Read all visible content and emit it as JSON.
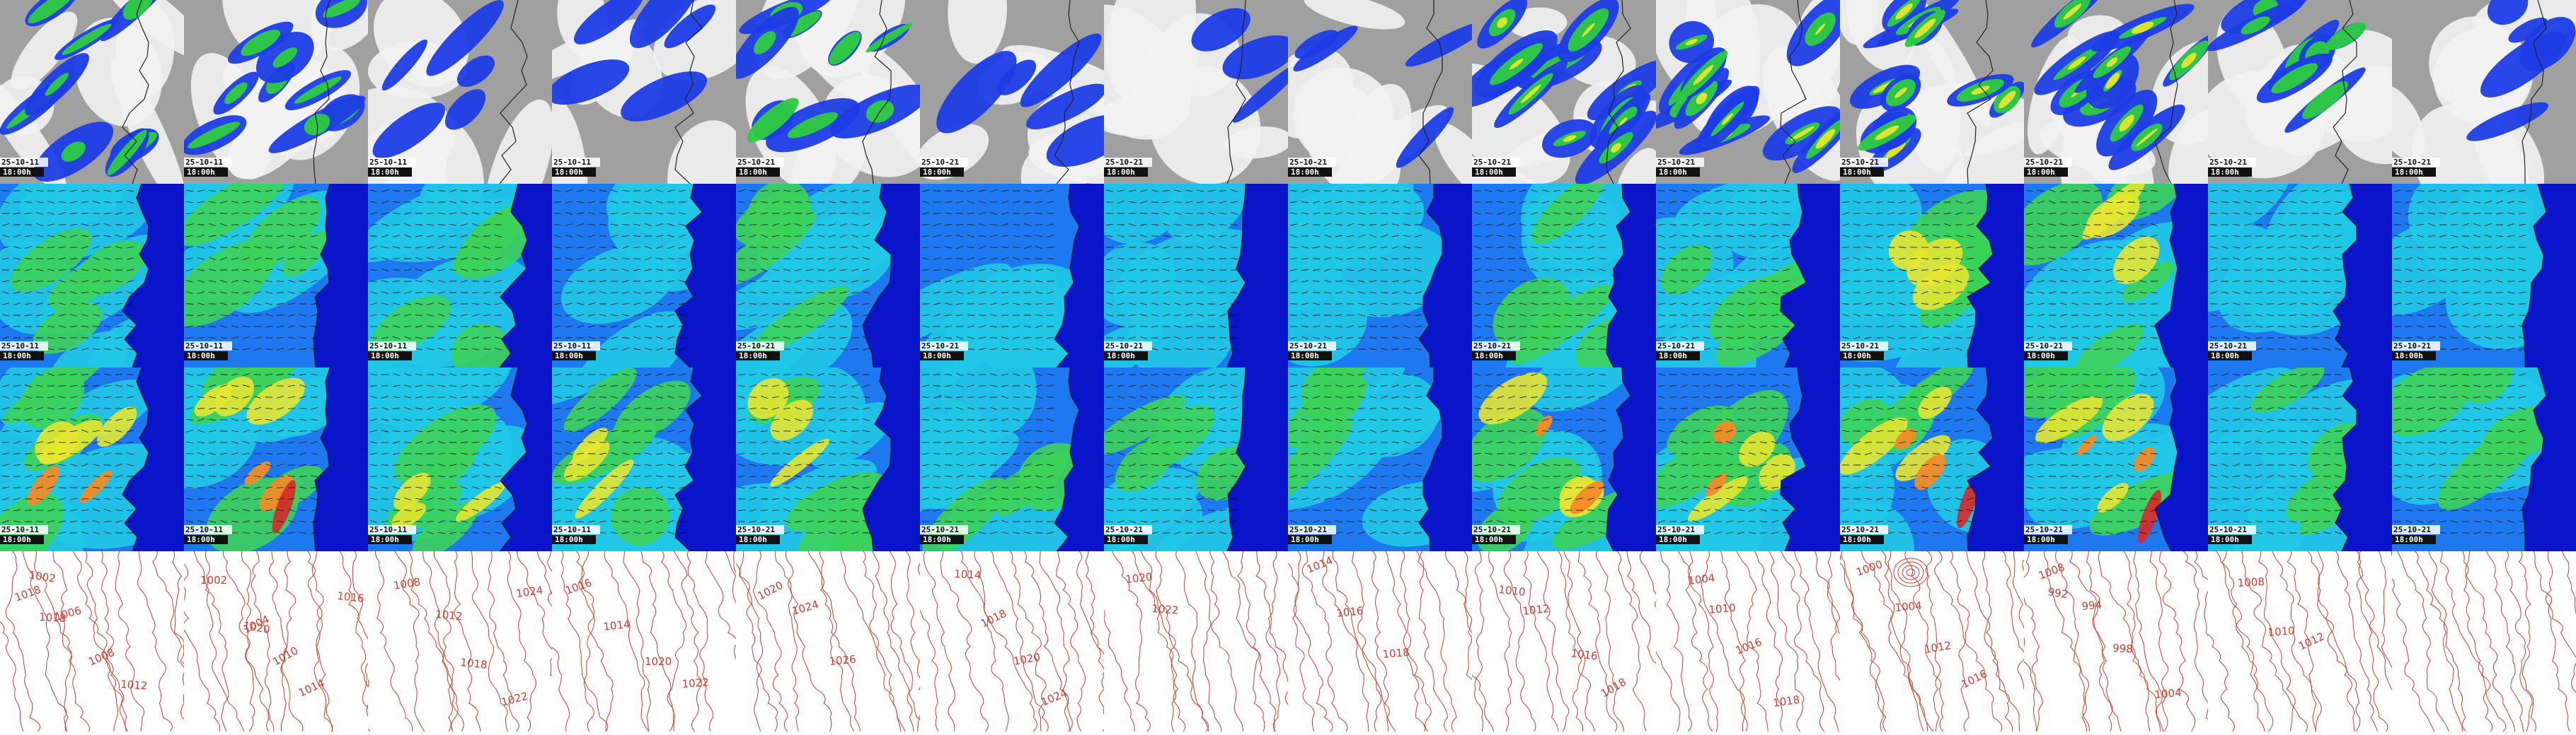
{
  "rows": [
    {
      "name": "precipitation-clouds",
      "palette": "cloud"
    },
    {
      "name": "wind-speed-low",
      "palette": "wind"
    },
    {
      "name": "wind-speed-high",
      "palette": "wind"
    },
    {
      "name": "mean-sea-level-pressure",
      "palette": "pressure"
    }
  ],
  "columns": [
    {
      "date": "25-10-11",
      "time": "18:00h",
      "pressure_labels": [
        "1002",
        "1006",
        "1008",
        "1012",
        "1018",
        "1018"
      ]
    },
    {
      "date": "25-10-11",
      "time": "18:00h",
      "pressure_labels": [
        "1002",
        "1004",
        "1010",
        "1014",
        "1016",
        "1020"
      ]
    },
    {
      "date": "25-10-11",
      "time": "18:00h",
      "pressure_labels": [
        "1008",
        "1012",
        "1018",
        "1022",
        "1024"
      ]
    },
    {
      "date": "25-10-11",
      "time": "18:00h",
      "pressure_labels": [
        "1016",
        "1014",
        "1020",
        "1022"
      ]
    },
    {
      "date": "25-10-21",
      "time": "18:00h",
      "pressure_labels": [
        "1020",
        "1024",
        "1026"
      ]
    },
    {
      "date": "25-10-21",
      "time": "18:00h",
      "pressure_labels": [
        "1014",
        "1018",
        "1020",
        "1024"
      ]
    },
    {
      "date": "25-10-21",
      "time": "18:00h",
      "pressure_labels": [
        "1020",
        "1022"
      ]
    },
    {
      "date": "25-10-21",
      "time": "18:00h",
      "pressure_labels": [
        "1014",
        "1016",
        "1018"
      ]
    },
    {
      "date": "25-10-21",
      "time": "18:00h",
      "pressure_labels": [
        "1010",
        "1012",
        "1016",
        "1018"
      ]
    },
    {
      "date": "25-10-21",
      "time": "18:00h",
      "pressure_labels": [
        "1004",
        "1010",
        "1016",
        "1018"
      ]
    },
    {
      "date": "25-10-21",
      "time": "18:00h",
      "pressure_labels": [
        "1000",
        "1004",
        "1012",
        "1016"
      ]
    },
    {
      "date": "25-10-21",
      "time": "18:00h",
      "pressure_labels": [
        "992",
        "994",
        "998",
        "1004",
        "1008"
      ]
    },
    {
      "date": "25-10-21",
      "time": "18:00h",
      "pressure_labels": [
        "1008",
        "1010",
        "1012"
      ]
    },
    {
      "date": "25-10-21",
      "time": "18:00h",
      "pressure_labels": []
    }
  ],
  "colors": {
    "cloud_bright": "#f2f2f2",
    "cloud_grey": "#a0a0a0",
    "precip_blue": "#1e3ce6",
    "precip_green": "#2ecc40",
    "precip_yellow": "#e6e630",
    "wind_dark": "#0a14c8",
    "wind_mid": "#1e78f0",
    "wind_cyan": "#20c8e6",
    "wind_green": "#3cd25a",
    "wind_yellow": "#e6e632",
    "wind_orange": "#f08c28",
    "wind_red": "#d72828",
    "isobar": "#d43a2e",
    "coastline": "#222222",
    "arrow": "#111111"
  }
}
